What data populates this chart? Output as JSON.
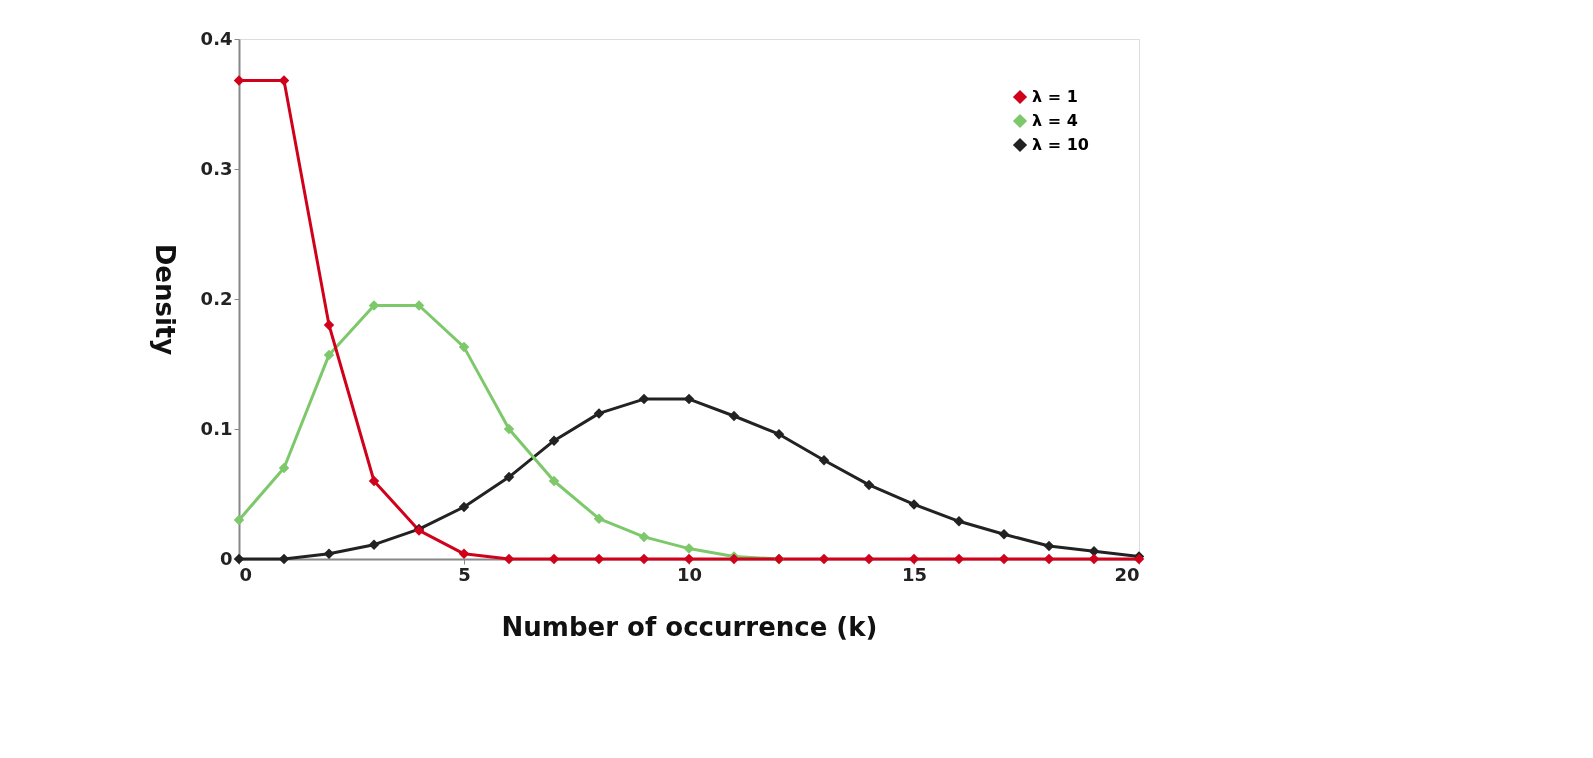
{
  "chart_data": {
    "type": "line",
    "xlabel": "Number of occurrence (k)",
    "ylabel": "Density",
    "x": [
      0,
      1,
      2,
      3,
      4,
      5,
      6,
      7,
      8,
      9,
      10,
      11,
      12,
      13,
      14,
      15,
      16,
      17,
      18,
      19,
      20
    ],
    "series": [
      {
        "name": "λ = 1",
        "color": "#d0021b",
        "values": [
          0.368,
          0.368,
          0.18,
          0.06,
          0.022,
          0.004,
          0,
          0,
          0,
          0,
          0,
          0,
          0,
          0,
          0,
          0,
          0,
          0,
          0,
          0,
          0
        ]
      },
      {
        "name": "λ = 4",
        "color": "#7dc86a",
        "values": [
          0.03,
          0.07,
          0.157,
          0.195,
          0.195,
          0.163,
          0.1,
          0.06,
          0.031,
          0.017,
          0.008,
          0.002,
          0,
          null,
          null,
          null,
          null,
          null,
          null,
          null,
          null
        ]
      },
      {
        "name": "λ = 10",
        "color": "#222222",
        "values": [
          0,
          0,
          0.004,
          0.011,
          0.023,
          0.04,
          0.063,
          0.091,
          0.112,
          0.123,
          0.123,
          0.11,
          0.096,
          0.076,
          0.057,
          0.042,
          0.029,
          0.019,
          0.01,
          0.006,
          0.002
        ]
      }
    ],
    "xlim": [
      0,
      20
    ],
    "xticks": [
      0,
      5,
      10,
      15,
      20
    ],
    "ylim": [
      0,
      0.4
    ],
    "yticks": [
      0,
      0.1,
      0.2,
      0.3,
      0.4
    ],
    "grid": false,
    "legend": "top right",
    "marker": "diamond",
    "line_style": "solid"
  }
}
